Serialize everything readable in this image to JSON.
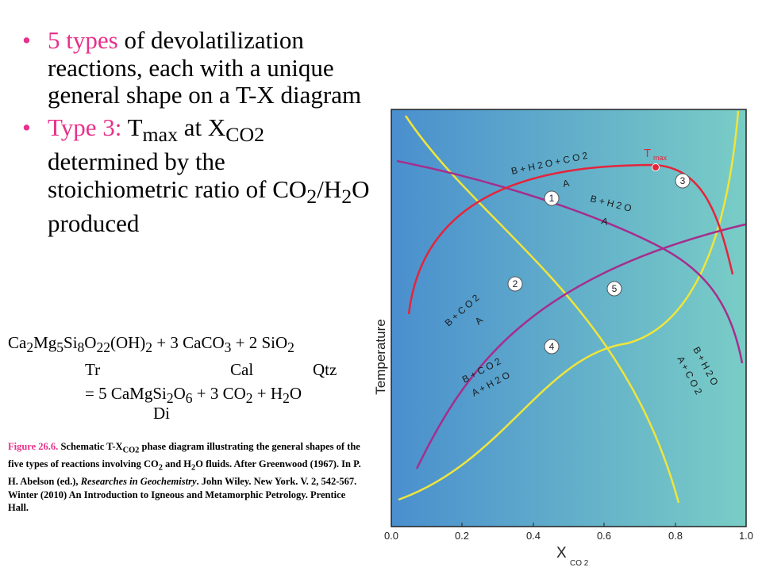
{
  "bullets": [
    {
      "highlight": "5 types",
      "rest": " of devolatilization reactions, each with a unique general shape on a T-X diagram"
    },
    {
      "highlight_a": "Type 3: ",
      "t": "T",
      "t_sub": "max",
      "at": " at X",
      "x_sub": "CO2",
      "rest": " determined by the stoichiometric ratio of CO",
      "co2_sub": "2",
      "slash": "/H",
      "h2o_sub": "2",
      "tail": "O produced"
    }
  ],
  "equation": {
    "line1": [
      "Ca",
      "2",
      "Mg",
      "5",
      "Si",
      "8",
      "O",
      "22",
      "(OH)",
      "2",
      " + 3 CaCO",
      "3",
      "  + 2 SiO",
      "2"
    ],
    "labels": {
      "tr": "Tr",
      "cal": "Cal",
      "qtz": "Qtz",
      "di": "Di"
    },
    "line3": [
      "= 5 CaMgSi",
      "2",
      "O",
      "6",
      " + 3 CO",
      "2",
      " + H",
      "2",
      "O"
    ]
  },
  "caption": {
    "fig_label": "Figure 26.6.",
    "part1": " Schematic T-X",
    "sub1": "CO2",
    "part2": " phase diagram illustrating  the general shapes of the five types of reactions involving CO",
    "sub2": "2",
    "part3": " and H",
    "sub3": "2",
    "part4": "O fluids. After Greenwood (1967). In P. H. Abelson (ed.), ",
    "italic": "Researches in Geochemistry",
    "part5": ". John Wiley. New York. V. 2, 542-567. Winter (2010) An Introduction to Igneous and Metamorphic Petrology. Prentice Hall."
  },
  "diagram": {
    "y_axis_label": "Temperature",
    "x_axis_label": "X",
    "x_axis_sub": "CO 2",
    "x_ticks": [
      "0.0",
      "0.2",
      "0.4",
      "0.6",
      "0.8",
      "1.0"
    ],
    "tmax_label": "T",
    "tmax_sub": "max",
    "curve_numbers": [
      "1",
      "2",
      "3",
      "4",
      "5"
    ],
    "labels": {
      "c3_top": "B + H 2 O  + C O 2",
      "c3_bottom": "A",
      "c1_top": "B + H 2 O",
      "c1_bottom": "A",
      "c2_top": "B + C O 2",
      "c2_bottom": "A",
      "c4_top": "B + C O 2",
      "c4_bottom": "A + H 2 O",
      "c5_top": "B + H 2 O",
      "c5_bottom": "A + C O 2"
    },
    "colors": {
      "bg_left": "#4a8fce",
      "bg_right": "#79cdc6",
      "curve_red": "#e5243b",
      "curve_purple": "#a52e8d",
      "curve_yellow": "#f0e53a",
      "axis": "#222222"
    }
  }
}
